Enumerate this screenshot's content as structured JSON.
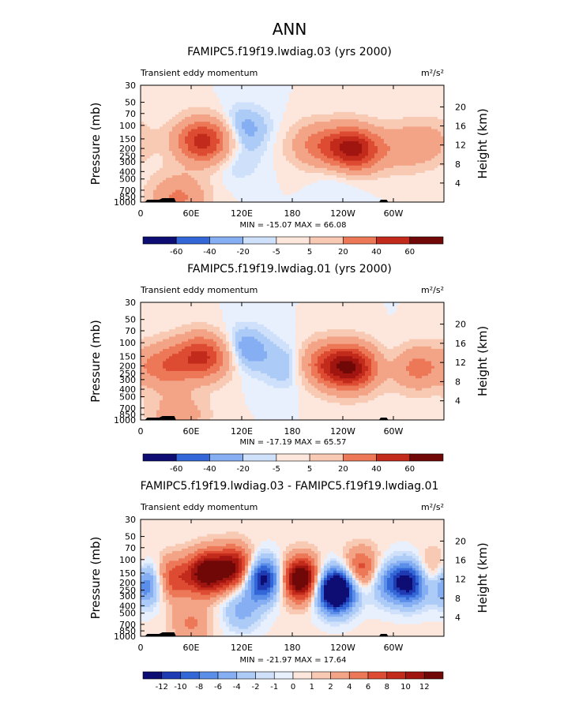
{
  "page_title": "ANN",
  "colors": {
    "contour_levels_panels_1_2": [
      "#08306b",
      "#08519c",
      "#2171b5",
      "#4292c6",
      "#6baed6",
      "#9ecae1",
      "#c6dbef",
      "#deebf7",
      "#fee0d2",
      "#fcbba1",
      "#fc9272",
      "#fb6a4a",
      "#ef3b2c",
      "#cb181d",
      "#a50f15",
      "#67000d"
    ],
    "colorbar_order": [
      "#0d0d73",
      "#1f3bb3",
      "#3366d6",
      "#5b8ee8",
      "#86aef2",
      "#adcbf7",
      "#cfe0fa",
      "#e8f0fd",
      "#fde7dd",
      "#f8c9b3",
      "#f3a386",
      "#ec7858",
      "#dd4b32",
      "#c22a1b",
      "#a11510",
      "#700808"
    ],
    "topography": "#000000"
  },
  "chart_data": [
    {
      "type": "heatmap",
      "title": "FAMIPC5.f19f19.lwdiag.03 (yrs 2000)",
      "left_label": "Transient eddy momentum",
      "units_label": "m²/s²",
      "ylabel": "Pressure (mb)",
      "ylabel_right": "Height (km)",
      "x_ticks": [
        "0",
        "60E",
        "120E",
        "180",
        "120W",
        "60W"
      ],
      "y_ticks": [
        "30",
        "50",
        "70",
        "100",
        "150",
        "200",
        "250",
        "300",
        "400",
        "500",
        "700",
        "850",
        "1000"
      ],
      "y_ticks_right": [
        "20",
        "16",
        "12",
        "8",
        "4"
      ],
      "stats": "MIN = -15.07  MAX = 66.08",
      "colorbar_labels": [
        "-60",
        "-40",
        "-20",
        "-5",
        "5",
        "20",
        "40",
        "60"
      ],
      "features": [
        {
          "lon": 75,
          "p": 160,
          "value": 45
        },
        {
          "lon": 252,
          "p": 210,
          "value": 55
        },
        {
          "lon": 210,
          "p": 180,
          "value": 20
        },
        {
          "lon": 312,
          "p": 200,
          "value": 12
        },
        {
          "lon": 340,
          "p": 160,
          "value": 10
        },
        {
          "lon": 120,
          "p": 110,
          "value": -10
        },
        {
          "lon": 240,
          "p": 350,
          "value": -8
        },
        {
          "lon": 110,
          "p": 280,
          "value": -5
        },
        {
          "lon": 45,
          "p": 860,
          "value": 20
        }
      ]
    },
    {
      "type": "heatmap",
      "title": "FAMIPC5.f19f19.lwdiag.01 (yrs 2000)",
      "left_label": "Transient eddy momentum",
      "units_label": "m²/s²",
      "ylabel": "Pressure (mb)",
      "ylabel_right": "Height (km)",
      "x_ticks": [
        "0",
        "60E",
        "120E",
        "180",
        "120W",
        "60W"
      ],
      "y_ticks": [
        "30",
        "50",
        "70",
        "100",
        "150",
        "200",
        "250",
        "300",
        "400",
        "500",
        "700",
        "850",
        "1000"
      ],
      "y_ticks_right": [
        "20",
        "16",
        "12",
        "8",
        "4"
      ],
      "stats": "MIN = -17.19  MAX = 65.57",
      "colorbar_labels": [
        "-60",
        "-40",
        "-20",
        "-5",
        "5",
        "20",
        "40",
        "60"
      ],
      "features": [
        {
          "lon": 75,
          "p": 150,
          "value": 40
        },
        {
          "lon": 30,
          "p": 200,
          "value": 25
        },
        {
          "lon": 250,
          "p": 210,
          "value": 55
        },
        {
          "lon": 215,
          "p": 190,
          "value": 25
        },
        {
          "lon": 325,
          "p": 210,
          "value": 25
        },
        {
          "lon": 120,
          "p": 120,
          "value": -12
        },
        {
          "lon": 180,
          "p": 200,
          "value": -10
        },
        {
          "lon": 300,
          "p": 190,
          "value": -8
        },
        {
          "lon": 45,
          "p": 860,
          "value": 15
        }
      ]
    },
    {
      "type": "heatmap",
      "title": "FAMIPC5.f19f19.lwdiag.03 - FAMIPC5.f19f19.lwdiag.01",
      "left_label": "Transient eddy momentum",
      "units_label": "m²/s²",
      "ylabel": "Pressure (mb)",
      "ylabel_right": "Height (km)",
      "x_ticks": [
        "0",
        "60E",
        "120E",
        "180",
        "120W",
        "60W"
      ],
      "y_ticks": [
        "30",
        "50",
        "70",
        "100",
        "150",
        "200",
        "250",
        "300",
        "400",
        "500",
        "700",
        "850",
        "1000"
      ],
      "y_ticks_right": [
        "20",
        "16",
        "12",
        "8",
        "4"
      ],
      "stats": "MIN = -21.97  MAX = 17.64",
      "colorbar_labels": [
        "-12",
        "-10",
        "-8",
        "-6",
        "-4",
        "-2",
        "-1",
        "0",
        "1",
        "2",
        "4",
        "6",
        "8",
        "10",
        "12"
      ],
      "features": [
        {
          "lon": 5,
          "p": 200,
          "value": -12
        },
        {
          "lon": 35,
          "p": 180,
          "value": 8
        },
        {
          "lon": 78,
          "p": 150,
          "value": 14
        },
        {
          "lon": 112,
          "p": 130,
          "value": 12
        },
        {
          "lon": 145,
          "p": 180,
          "value": -14
        },
        {
          "lon": 190,
          "p": 180,
          "value": 16
        },
        {
          "lon": 232,
          "p": 250,
          "value": -22
        },
        {
          "lon": 262,
          "p": 140,
          "value": 8
        },
        {
          "lon": 320,
          "p": 200,
          "value": -14
        },
        {
          "lon": 348,
          "p": 160,
          "value": 8
        },
        {
          "lon": 290,
          "p": 200,
          "value": -6
        },
        {
          "lon": 120,
          "p": 450,
          "value": -5
        },
        {
          "lon": 60,
          "p": 700,
          "value": 4
        }
      ]
    }
  ]
}
